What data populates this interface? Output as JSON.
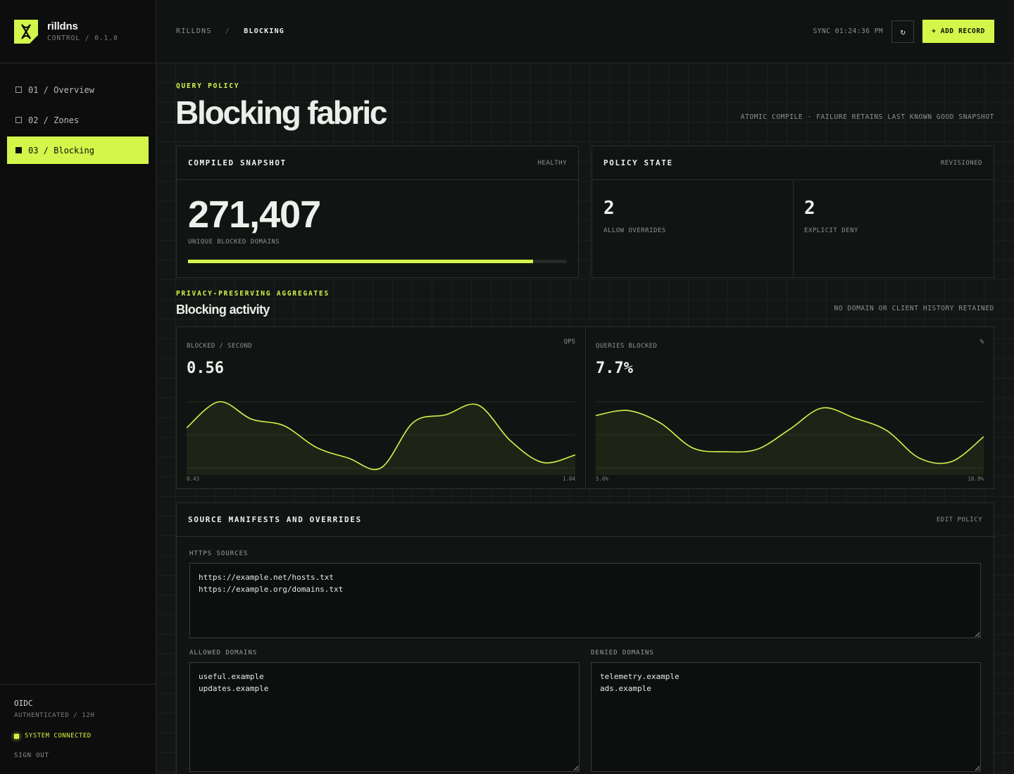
{
  "brand": {
    "name": "rilldns",
    "subtitle": "CONTROL / 0.1.0"
  },
  "nav": {
    "items": [
      {
        "label": "01 / Overview",
        "active": false
      },
      {
        "label": "02 / Zones",
        "active": false
      },
      {
        "label": "03 / Blocking",
        "active": true
      }
    ]
  },
  "auth": {
    "provider": "OIDC",
    "status": "AUTHENTICATED / 12H",
    "system": "SYSTEM CONNECTED",
    "signout": "SIGN OUT"
  },
  "topbar": {
    "crumb_root": "RILLDNS",
    "crumb_sep": "/",
    "crumb_current": "BLOCKING",
    "sync": "SYNC 01:24:36 PM",
    "refresh_icon": "↻",
    "add_label": "+ ADD RECORD"
  },
  "header": {
    "eyebrow": "QUERY POLICY",
    "title": "Blocking fabric",
    "note": "ATOMIC COMPILE · FAILURE RETAINS LAST KNOWN GOOD SNAPSHOT"
  },
  "snapshot": {
    "title": "COMPILED SNAPSHOT",
    "status": "HEALTHY",
    "count": "271,407",
    "caption": "UNIQUE BLOCKED DOMAINS",
    "progress": 0.91
  },
  "policy": {
    "title": "POLICY STATE",
    "tag": "REVISIONED",
    "allow_count": "2",
    "allow_label": "ALLOW OVERRIDES",
    "deny_count": "2",
    "deny_label": "EXPLICIT DENY"
  },
  "activity": {
    "eyebrow": "PRIVACY-PRESERVING AGGREGATES",
    "title": "Blocking activity",
    "note": "NO DOMAIN OR CLIENT HISTORY RETAINED"
  },
  "charts": [
    {
      "label": "BLOCKED / SECOND",
      "unit": "QPS",
      "value": "0.56",
      "min_label": "0.43",
      "max_label": "1.04",
      "points": [
        0.8,
        1.04,
        0.88,
        0.82,
        0.62,
        0.52,
        0.43,
        0.85,
        0.92,
        1.01,
        0.68,
        0.48,
        0.55
      ]
    },
    {
      "label": "QUERIES BLOCKED",
      "unit": "%",
      "value": "7.7%",
      "min_label": "5.6%",
      "max_label": "10.9%",
      "points": [
        9.8,
        10.2,
        9.2,
        7.2,
        6.9,
        7.1,
        8.7,
        10.4,
        9.6,
        8.6,
        6.4,
        6.1,
        8.1
      ]
    }
  ],
  "chart_data": [
    {
      "type": "area",
      "ylabel": "BLOCKED / SECOND",
      "unit": "QPS",
      "current": 0.56,
      "ylim": [
        0.43,
        1.04
      ],
      "y": [
        0.8,
        1.04,
        0.88,
        0.82,
        0.62,
        0.52,
        0.43,
        0.85,
        0.92,
        1.01,
        0.68,
        0.48,
        0.55
      ],
      "grid": true
    },
    {
      "type": "area",
      "ylabel": "QUERIES BLOCKED",
      "unit": "%",
      "current": 7.7,
      "ylim": [
        5.6,
        10.9
      ],
      "y": [
        9.8,
        10.2,
        9.2,
        7.2,
        6.9,
        7.1,
        8.7,
        10.4,
        9.6,
        8.6,
        6.4,
        6.1,
        8.1
      ],
      "grid": true
    }
  ],
  "sources": {
    "title": "SOURCE MANIFESTS AND OVERRIDES",
    "edit_label": "EDIT POLICY",
    "https_label": "HTTPS SOURCES",
    "https_value": "https://example.net/hosts.txt\nhttps://example.org/domains.txt",
    "allowed_label": "ALLOWED DOMAINS",
    "allowed_value": "useful.example\nupdates.example",
    "denied_label": "DENIED DOMAINS",
    "denied_value": "telemetry.example\nads.example"
  },
  "colors": {
    "accent": "#d2f64a",
    "background": "#111312",
    "panel": "#121413",
    "border": "#2c2f2b"
  }
}
